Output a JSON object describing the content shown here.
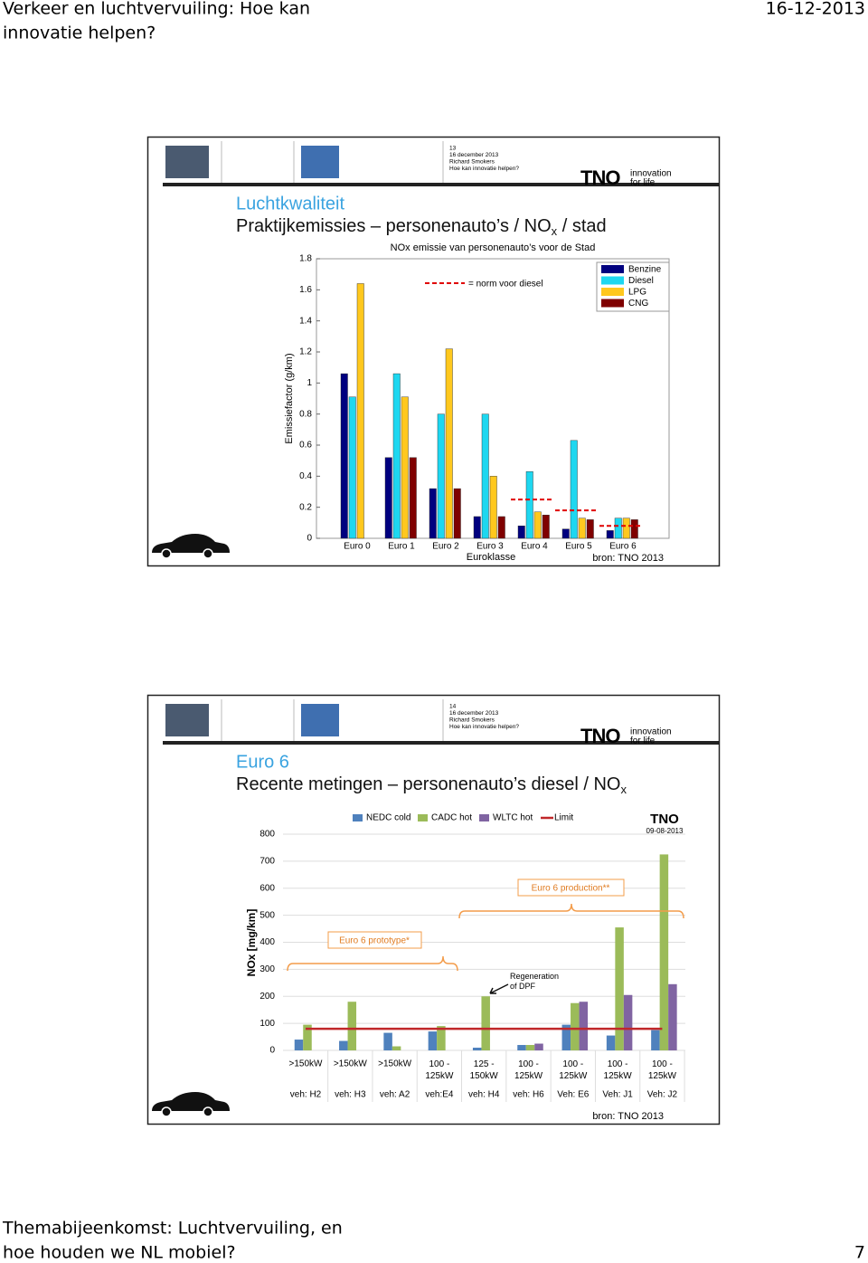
{
  "header": {
    "title": [
      "Verkeer en luchtvervuiling: Hoe kan",
      "innovatie helpen?"
    ],
    "date": "16-12-2013"
  },
  "slides": [
    {
      "meta": [
        "13",
        "16 december 2013",
        "Richard Smokers",
        "Hoe kan innovatie helpen?"
      ],
      "logo": {
        "mark": "TNO",
        "tagline": [
          "innovation",
          "for life"
        ]
      },
      "kicker": "Luchtkwaliteit",
      "title": [
        "Praktijkemissies – personenauto’s / NO",
        "x",
        " / stad"
      ],
      "source": "bron: TNO 2013",
      "chart": {
        "type": "bar",
        "title": "NOx emissie van personenauto’s voor de Stad",
        "y_label": "Emissiefactor (g/km)",
        "x_label": "Euroklasse",
        "categories": [
          "Euro 0",
          "Euro 1",
          "Euro 2",
          "Euro 3",
          "Euro 4",
          "Euro 5",
          "Euro 6"
        ],
        "series": [
          {
            "name": "Benzine",
            "color": "#00007f",
            "values": [
              1.06,
              0.52,
              0.32,
              0.14,
              0.08,
              0.06,
              0.05
            ]
          },
          {
            "name": "Diesel",
            "color": "#1ed7f0",
            "values": [
              0.91,
              1.06,
              0.8,
              0.8,
              0.43,
              0.63,
              0.13
            ]
          },
          {
            "name": "LPG",
            "color": "#ffc81e",
            "values": [
              1.64,
              0.91,
              1.22,
              0.4,
              0.17,
              0.13,
              0.13
            ]
          },
          {
            "name": "CNG",
            "color": "#7f0000",
            "values": [
              null,
              0.52,
              0.32,
              0.14,
              0.15,
              0.12,
              0.12
            ]
          }
        ],
        "norm": {
          "label": "= norm voor diesel",
          "color": "#e00000",
          "values": [
            null,
            null,
            null,
            null,
            0.25,
            0.18,
            0.08
          ]
        },
        "ylim": [
          0,
          1.8
        ],
        "yticks": [
          0,
          0.2,
          0.4,
          0.6,
          0.8,
          1,
          1.2,
          1.4,
          1.6,
          1.8
        ],
        "legend": "top-right"
      }
    },
    {
      "meta": [
        "14",
        "16 december 2013",
        "Richard Smokers",
        "Hoe kan innovatie helpen?"
      ],
      "logo": {
        "mark": "TNO",
        "tagline": [
          "innovation",
          "for life"
        ]
      },
      "kicker": "Euro 6",
      "title": [
        "Recente metingen – personenauto’s diesel / NO",
        "x",
        ""
      ],
      "source": "bron: TNO 2013",
      "chart": {
        "type": "bar",
        "y_label": "NOx [mg/km]",
        "stamp": [
          "TNO",
          "09-08-2013"
        ],
        "categories": [
          ">150kW",
          ">150kW",
          ">150kW",
          "100 - 125kW",
          "125 - 150kW",
          "100 - 125kW",
          "100 - 125kW",
          "100 - 125kW",
          "100 - 125kW"
        ],
        "vehicles": [
          "veh: H2",
          "veh: H3",
          "veh: A2",
          "veh:E4",
          "veh: H4",
          "veh: H6",
          "Veh: E6",
          "Veh: J1",
          "Veh: J2"
        ],
        "series": [
          {
            "name": "NEDC cold",
            "color": "#4f81bd",
            "values": [
              40,
              35,
              65,
              70,
              10,
              20,
              95,
              55,
              75
            ]
          },
          {
            "name": "CADC hot",
            "color": "#9bbb59",
            "values": [
              95,
              180,
              15,
              90,
              200,
              20,
              175,
              455,
              725
            ]
          },
          {
            "name": "WLTC hot",
            "color": "#8064a2",
            "values": [
              null,
              null,
              null,
              null,
              null,
              25,
              180,
              205,
              245
            ]
          }
        ],
        "limit": {
          "name": "Limit",
          "color": "#c0282a",
          "value": 80
        },
        "annotations": [
          "Euro 6 prototype*",
          "Euro 6 production**",
          "Regeneration of DPF"
        ],
        "ylim": [
          0,
          800
        ],
        "yticks": [
          0,
          100,
          200,
          300,
          400,
          500,
          600,
          700,
          800
        ],
        "legend": "top"
      }
    }
  ],
  "footer": {
    "text": [
      "Themabijeenkomst: Luchtvervuiling, en",
      "hoe houden we NL mobiel?"
    ],
    "page": "7"
  }
}
